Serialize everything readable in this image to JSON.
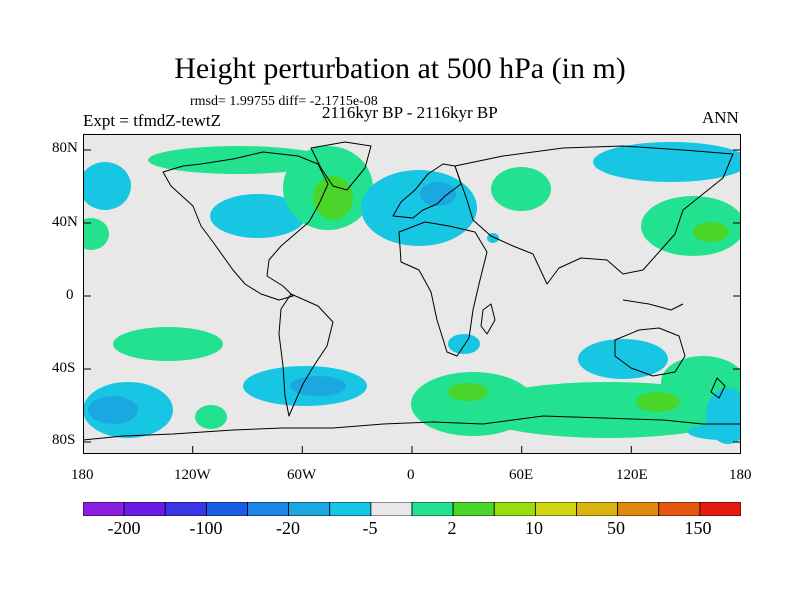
{
  "title": "Height perturbation at 500 hPa (in m)",
  "stats": {
    "rmsd_text": "rmsd= 1.99755 diff= -2.1715e-08"
  },
  "experiment": "Expt = tfmdZ-tewtZ",
  "period": "2116kyr BP - 2116kyr BP",
  "season": "ANN",
  "axes": {
    "y_ticks": [
      "80N",
      "40N",
      "0",
      "40S",
      "80S"
    ],
    "x_ticks": [
      "180",
      "120W",
      "60W",
      "0",
      "60E",
      "120E",
      "180"
    ]
  },
  "colorbar": {
    "labels": [
      "-200",
      "-100",
      "-20",
      "-5",
      "2",
      "10",
      "50",
      "150"
    ],
    "colors": [
      "#8a1fe0",
      "#6a1ce6",
      "#3c35e6",
      "#1a5ce6",
      "#1f86e6",
      "#1ba8e0",
      "#17c6e2",
      "#e8e8e8",
      "#22e290",
      "#49d52a",
      "#98dd12",
      "#cfd50f",
      "#d9b30f",
      "#df8a0f",
      "#e4570f",
      "#e41a0f"
    ]
  },
  "colors": {
    "land_background": "#e8e8e8",
    "coast": "#000000",
    "cyan": "#17c6e2",
    "cyan_dark": "#1ba8e0",
    "green": "#22e290",
    "green_dark": "#49d52a"
  }
}
